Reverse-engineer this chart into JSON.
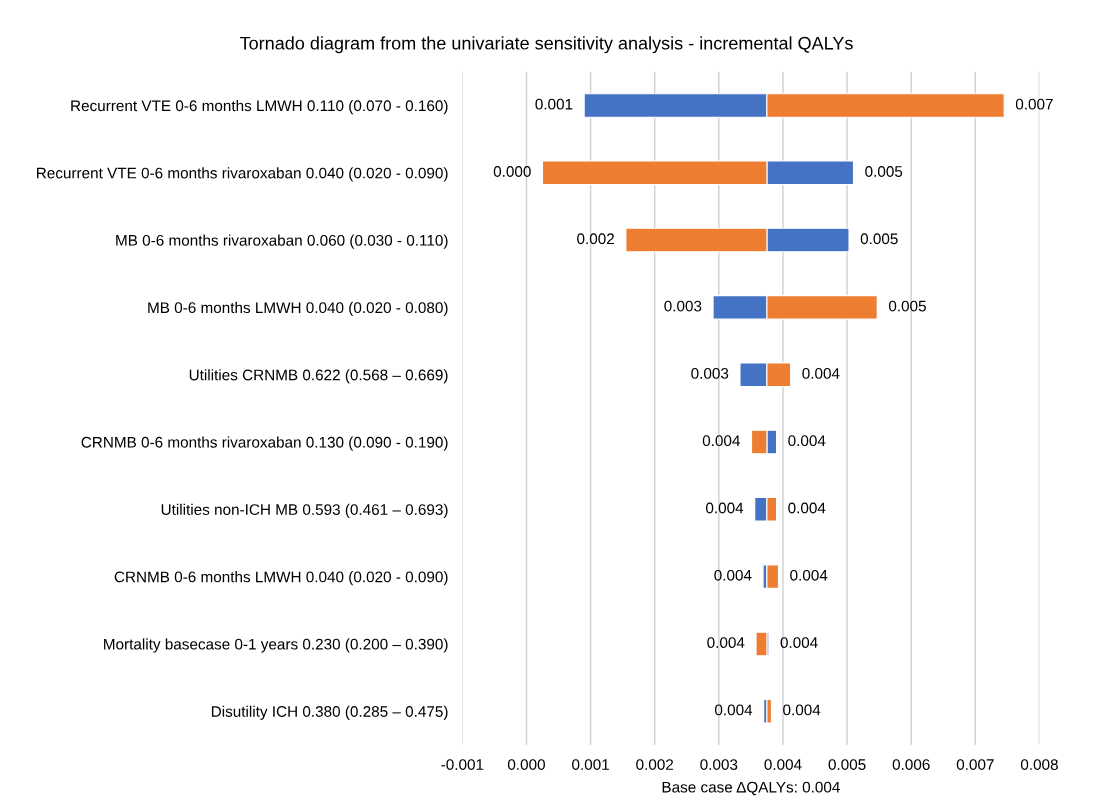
{
  "chart_data": {
    "type": "bar",
    "orientation": "horizontal",
    "title": "Tornado diagram from the univariate sensitivity analysis - incremental QALYs",
    "xlabel": "Base case ΔQALYs: 0.004",
    "categories": [
      "Recurrent VTE 0-6 months LMWH 0.110 (0.070 - 0.160)",
      "Recurrent VTE 0-6 months rivaroxaban 0.040 (0.020 - 0.090)",
      "MB 0-6 months rivaroxaban 0.060 (0.030 - 0.110)",
      "MB 0-6 months LMWH 0.040 (0.020 - 0.080)",
      "Utilities CRNMB 0.622 (0.568 – 0.669)",
      "CRNMB 0-6 months rivaroxaban 0.130 (0.090 - 0.190)",
      "Utilities non-ICH MB 0.593 (0.461 – 0.693)",
      "CRNMB 0-6 months LMWH 0.040 (0.020 - 0.090)",
      "Mortality basecase 0-1 years 0.230 (0.200 – 0.390)",
      "Disutility ICH 0.380 (0.285 – 0.475)"
    ],
    "series": [
      {
        "color": "#4472c4",
        "base": [
          0.00375,
          0.00375,
          0.00375,
          0.00375,
          0.00375,
          0.00375,
          0.00375,
          0.00375,
          0.00375,
          0.00375
        ],
        "values": [
          -0.00285,
          0.00135,
          0.00128,
          -0.00084,
          -0.00042,
          0.00015,
          -0.00019,
          -6e-05,
          3e-05,
          -5e-05
        ],
        "value_labels": [
          "0.001",
          "0.005",
          "0.005",
          "0.003",
          "0.003",
          "0.004",
          "0.004",
          "0.004",
          "0.004",
          "0.004"
        ]
      },
      {
        "color": "#ed7d31",
        "base": [
          0.00375,
          0.00375,
          0.00375,
          0.00375,
          0.00375,
          0.00375,
          0.00375,
          0.00375,
          0.00375,
          0.00375
        ],
        "values": [
          0.0037,
          -0.0035,
          -0.0022,
          0.00172,
          0.00037,
          -0.00024,
          0.00015,
          0.00018,
          -0.00017,
          7e-05
        ],
        "value_labels": [
          "0.007",
          "0.000",
          "0.002",
          "0.005",
          "0.004",
          "0.004",
          "0.004",
          "0.004",
          "0.004",
          "0.004"
        ]
      }
    ],
    "xlim": [
      -0.001,
      0.008
    ],
    "xticks": [
      {
        "value": -0.001,
        "label": "-0.001"
      },
      {
        "value": 0.0,
        "label": "0.000"
      },
      {
        "value": 0.001,
        "label": "0.001"
      },
      {
        "value": 0.002,
        "label": "0.002"
      },
      {
        "value": 0.003,
        "label": "0.003"
      },
      {
        "value": 0.004,
        "label": "0.004"
      },
      {
        "value": 0.005,
        "label": "0.005"
      },
      {
        "value": 0.006,
        "label": "0.006"
      },
      {
        "value": 0.007,
        "label": "0.007"
      },
      {
        "value": 0.008,
        "label": "0.008"
      }
    ],
    "grid": "x"
  }
}
